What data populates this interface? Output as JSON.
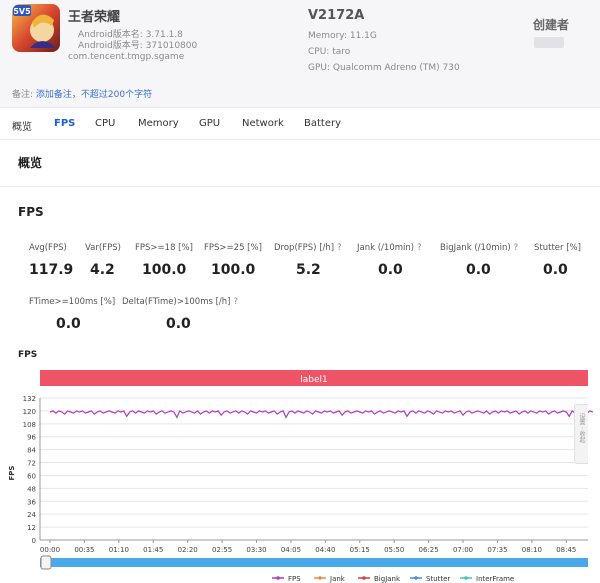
{
  "app": {
    "name": "王者荣耀",
    "version_name": "Android版本名: 3.71.1.8",
    "version_code": "Android版本号: 371010800",
    "package": "com.tencent.tmgp.sgame"
  },
  "device": {
    "model": "V2172A",
    "memory": "Memory: 11.1G",
    "cpu": "CPU: taro",
    "gpu": "GPU: Qualcomm Adreno (TM) 730"
  },
  "creator_label": "创建者",
  "note": {
    "label": "备注:",
    "link": "添加备注，不超过200个字符"
  },
  "tabs": [
    "概览",
    "FPS",
    "CPU",
    "Memory",
    "GPU",
    "Network",
    "Battery"
  ],
  "active_tab": "FPS",
  "overview_title": "概览",
  "fps_section_title": "FPS",
  "metrics": [
    {
      "label": "Avg(FPS)",
      "value": "117.9",
      "help": false
    },
    {
      "label": "Var(FPS)",
      "value": "4.2",
      "help": false
    },
    {
      "label": "FPS>=18 [%]",
      "value": "100.0",
      "help": false
    },
    {
      "label": "FPS>=25 [%]",
      "value": "100.0",
      "help": false
    },
    {
      "label": "Drop(FPS) [/h]",
      "value": "5.2",
      "help": true
    },
    {
      "label": "Jank (/10min)",
      "value": "0.0",
      "help": true
    },
    {
      "label": "BigJank (/10min)",
      "value": "0.0",
      "help": true
    },
    {
      "label": "Stutter [%]",
      "value": "0.0",
      "help": false
    },
    {
      "label": "FTime>=100ms [%]",
      "value": "0.0",
      "help": false
    },
    {
      "label": "Delta(FTime)>100ms [/h]",
      "value": "0.0",
      "help": true
    }
  ],
  "help_mark": "?",
  "side_tab_text": "设置 · 收起",
  "colors": {
    "accent": "#1d5fd8",
    "label_bar": "#ee5466",
    "fps_line": "#b23bc1",
    "jank": "#ef8a4a",
    "bigjank": "#d93a3a",
    "stutter": "#4a8ee8",
    "interframe": "#3fc6b2",
    "scrollbar": "#4aa9ea"
  },
  "chart_data": {
    "type": "line",
    "title": "FPS",
    "ylabel": "FPS",
    "xlabel": "",
    "ylim": [
      0,
      132
    ],
    "y_ticks": [
      0,
      12,
      24,
      36,
      48,
      60,
      72,
      84,
      96,
      108,
      120,
      132
    ],
    "x_ticks": [
      "00:00",
      "00:35",
      "01:10",
      "01:45",
      "02:20",
      "02:55",
      "03:30",
      "04:05",
      "04:40",
      "05:15",
      "05:50",
      "06:25",
      "07:00",
      "07:35",
      "08:10",
      "08:45"
    ],
    "x_range_seconds": [
      0,
      543
    ],
    "region_label": "label1",
    "grid": true,
    "legend_position": "bottom",
    "legend": [
      "FPS",
      "Jank",
      "BigJank",
      "Stutter",
      "InterFrame"
    ],
    "series": [
      {
        "name": "FPS",
        "x_step_seconds": 3,
        "values": [
          119,
          120,
          118,
          120,
          119,
          117,
          120,
          119,
          118,
          120,
          119,
          120,
          118,
          119,
          120,
          117,
          119,
          120,
          118,
          119,
          120,
          119,
          118,
          120,
          119,
          120,
          115,
          119,
          120,
          118,
          120,
          119,
          118,
          120,
          119,
          120,
          117,
          119,
          120,
          118,
          119,
          120,
          119,
          114,
          120,
          118,
          119,
          120,
          119,
          118,
          120,
          117,
          119,
          120,
          118,
          120,
          119,
          120,
          116,
          119,
          120,
          118,
          119,
          120,
          118,
          120,
          119,
          117,
          120,
          119,
          118,
          120,
          119,
          120,
          118,
          119,
          120,
          117,
          119,
          120,
          114,
          119,
          120,
          118,
          120,
          119,
          118,
          120,
          119,
          117,
          120,
          119,
          118,
          120,
          119,
          120,
          118,
          119,
          120,
          116,
          119,
          120,
          118,
          119,
          120,
          119,
          118,
          120,
          119,
          120,
          117,
          119,
          120,
          118,
          119,
          120,
          119,
          118,
          120,
          119,
          120,
          115,
          119,
          120,
          118,
          120,
          119,
          118,
          120,
          119,
          117,
          120,
          119,
          118,
          120,
          119,
          120,
          118,
          119,
          120,
          116,
          119,
          120,
          118,
          119,
          120,
          119,
          118,
          120,
          117,
          119,
          120,
          118,
          120,
          119,
          120,
          118,
          119,
          120,
          117,
          119,
          120,
          118,
          120,
          119,
          118,
          120,
          119,
          120,
          117,
          119,
          120,
          118,
          119,
          120,
          119,
          115,
          120,
          118,
          119,
          120,
          119,
          118,
          120,
          119
        ]
      }
    ]
  }
}
